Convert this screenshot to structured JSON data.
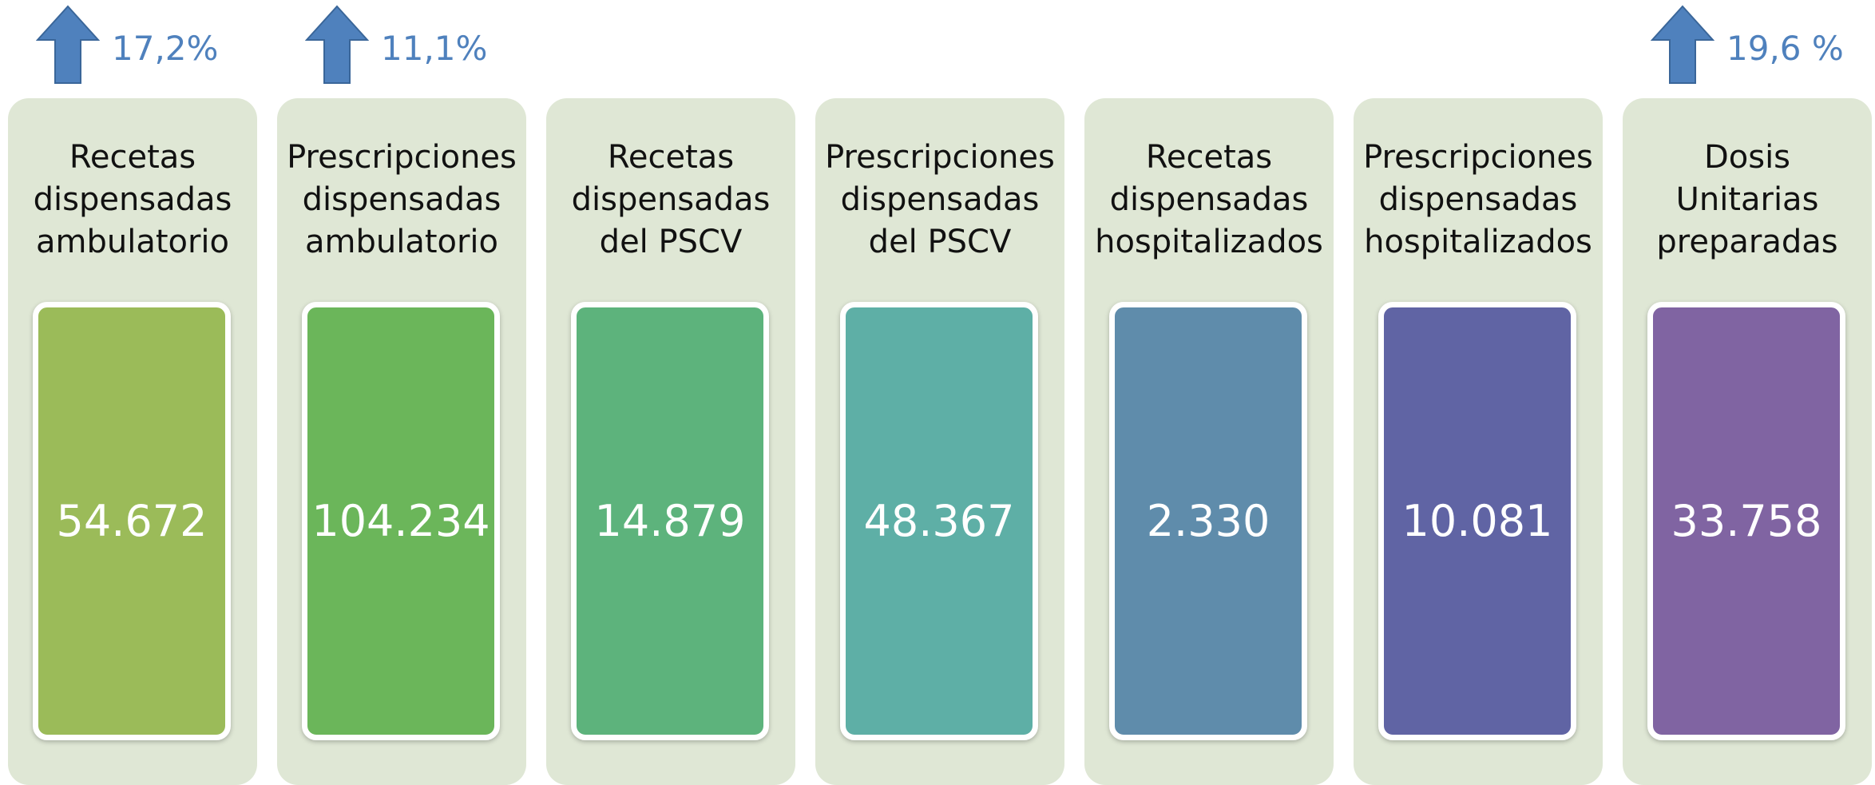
{
  "items": [
    {
      "label": [
        "Recetas",
        "dispensadas",
        "ambulatorio"
      ],
      "value": "54.672",
      "color": "#9bbb59",
      "change": "17,2%"
    },
    {
      "label": [
        "Prescripciones",
        "dispensadas",
        "ambulatorio"
      ],
      "value": "104.234",
      "color": "#6bb65a",
      "change": "11,1%"
    },
    {
      "label": [
        "Recetas",
        "dispensadas",
        "del PSCV"
      ],
      "value": "14.879",
      "color": "#5db37c"
    },
    {
      "label": [
        "Prescripciones",
        "dispensadas",
        "del PSCV"
      ],
      "value": "48.367",
      "color": "#5eafa6"
    },
    {
      "label": [
        "Recetas",
        "dispensadas",
        "hospitalizados"
      ],
      "value": "2.330",
      "color": "#5f8cab"
    },
    {
      "label": [
        "Prescripciones",
        "dispensadas",
        "hospitalizados"
      ],
      "value": "10.081",
      "color": "#6064a4"
    },
    {
      "label": [
        "Dosis",
        "Unitarias",
        "preparadas"
      ],
      "value": "33.758",
      "color": "#8064a2",
      "change": "19,6 %"
    }
  ]
}
